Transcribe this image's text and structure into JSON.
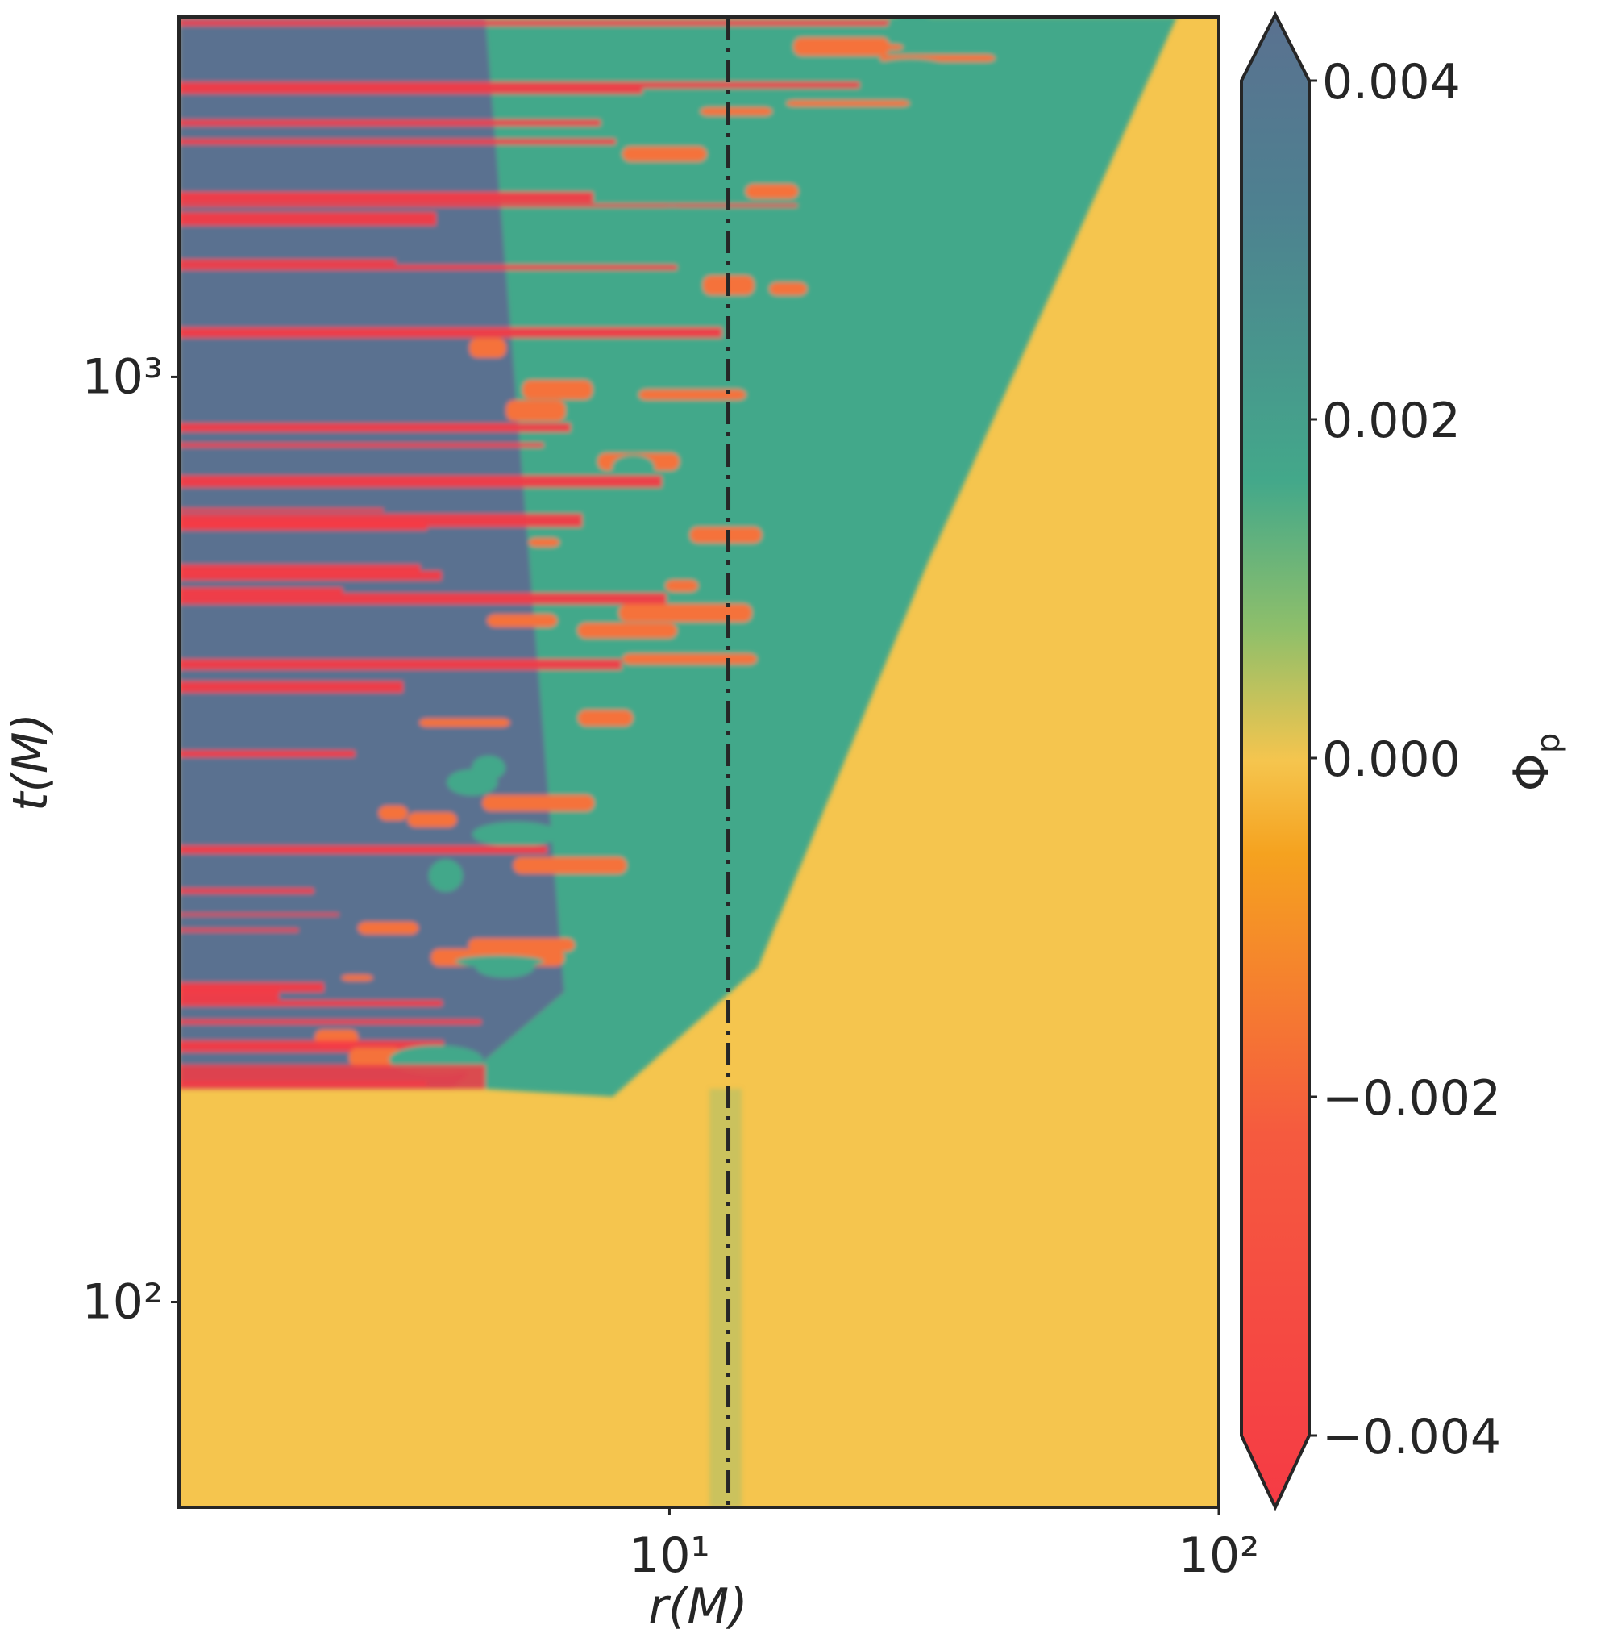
{
  "chart_data": {
    "type": "heatmap",
    "title": "",
    "xlabel": "r(M)",
    "ylabel": "t(M)",
    "x_scale": "log",
    "y_scale": "log",
    "xlim": [
      1.28,
      100
    ],
    "ylim": [
      60,
      2450
    ],
    "x_ticks": [
      {
        "value": 10,
        "label": "10¹"
      },
      {
        "value": 100,
        "label": "10²"
      }
    ],
    "y_ticks": [
      {
        "value": 100,
        "label": "10²"
      },
      {
        "value": 1000,
        "label": "10³"
      }
    ],
    "reference_line": {
      "axis": "x",
      "value": 12.8,
      "style": "dash-dot",
      "color": "#262626"
    },
    "grid": false,
    "colorbar": {
      "label": "Φp",
      "label_main": "Φ",
      "label_sub": "p",
      "range": [
        -0.004,
        0.004
      ],
      "extend": "both",
      "ticks": [
        {
          "value": 0.004,
          "label": "0.004"
        },
        {
          "value": 0.002,
          "label": "0.002"
        },
        {
          "value": 0.0,
          "label": "0.000"
        },
        {
          "value": -0.002,
          "label": "−0.002"
        },
        {
          "value": -0.004,
          "label": "−0.004"
        }
      ],
      "colors": [
        {
          "value": -0.004,
          "color": "#f53b45"
        },
        {
          "value": -0.002,
          "color": "#f55a3f"
        },
        {
          "value": -0.001,
          "color": "#f58a2a"
        },
        {
          "value": -0.0005,
          "color": "#f5a21f"
        },
        {
          "value": 0.0,
          "color": "#f5c54e"
        },
        {
          "value": 0.0007,
          "color": "#8fbf6a"
        },
        {
          "value": 0.0015,
          "color": "#43a88a"
        },
        {
          "value": 0.003,
          "color": "#4e8090"
        },
        {
          "value": 0.004,
          "color": "#5a7190"
        }
      ]
    },
    "field_description_regions": [
      {
        "name": "quiescent-background",
        "value": 0.0,
        "color": "#f5c54e"
      },
      {
        "name": "positive-band",
        "value": 0.004,
        "color": "#5a7190"
      },
      {
        "name": "negative-band",
        "value": -0.004,
        "color": "#f53b45"
      }
    ]
  }
}
